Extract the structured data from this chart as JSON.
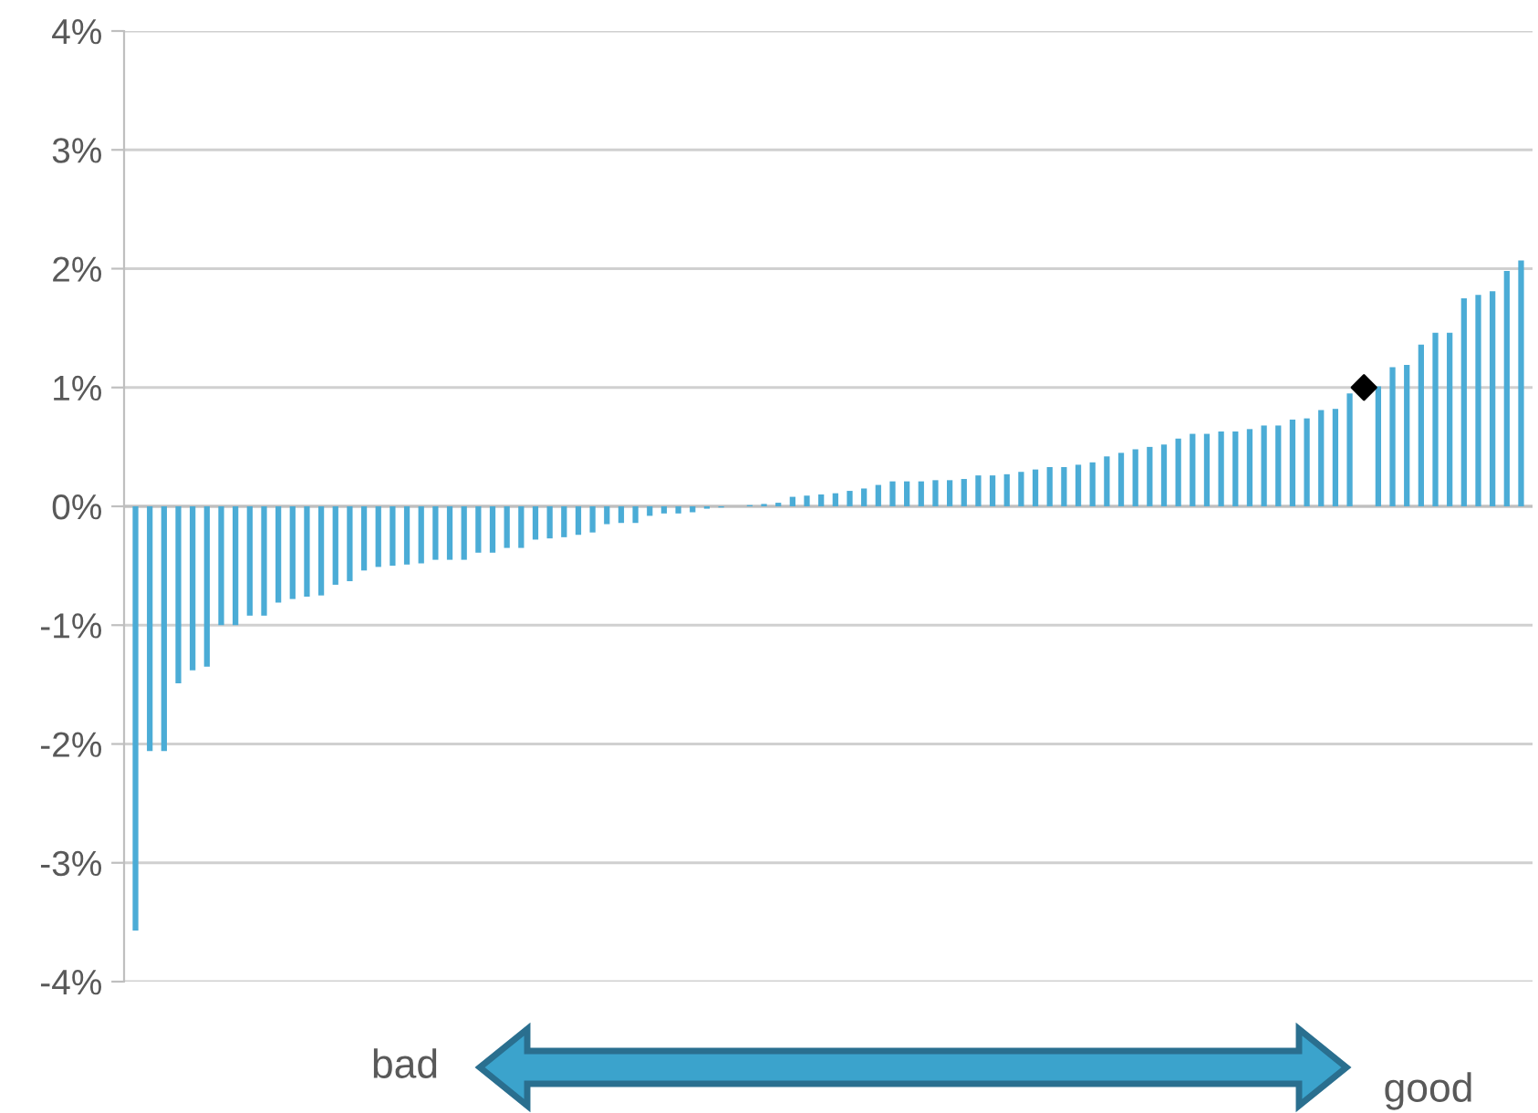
{
  "chart_data": {
    "type": "bar",
    "categories": [
      null,
      null,
      null,
      null,
      null,
      null,
      null,
      null,
      null,
      null,
      null,
      null,
      null,
      null,
      null,
      null,
      null,
      null,
      null,
      null,
      null,
      null,
      null,
      null,
      null,
      null,
      null,
      null,
      null,
      null,
      null,
      null,
      null,
      null,
      null,
      null,
      null,
      null,
      null,
      null,
      null,
      null,
      null,
      null,
      null,
      null,
      null,
      null,
      null,
      null,
      null,
      null,
      null,
      null,
      null,
      null,
      null,
      null,
      null,
      null,
      null,
      null,
      null,
      null,
      null,
      null,
      null,
      null,
      null,
      null,
      null,
      null,
      null,
      null,
      null,
      null,
      null,
      null,
      null,
      null,
      null,
      null,
      null,
      null,
      null,
      null,
      null,
      null,
      null,
      null,
      null,
      null,
      null,
      null,
      null,
      null,
      null,
      null
    ],
    "series": [
      {
        "color": "#4bacd6",
        "values": [
          -3.57,
          -2.06,
          -2.06,
          -1.49,
          -1.38,
          -1.35,
          -1.0,
          -1.0,
          -0.92,
          -0.92,
          -0.81,
          -0.78,
          -0.76,
          -0.75,
          -0.66,
          -0.63,
          -0.54,
          -0.51,
          -0.5,
          -0.49,
          -0.48,
          -0.45,
          -0.45,
          -0.45,
          -0.39,
          -0.39,
          -0.35,
          -0.35,
          -0.28,
          -0.27,
          -0.26,
          -0.24,
          -0.22,
          -0.15,
          -0.14,
          -0.14,
          -0.08,
          -0.06,
          -0.06,
          -0.05,
          -0.02,
          -0.01,
          0,
          0.01,
          0.02,
          0.03,
          0.08,
          0.09,
          0.1,
          0.11,
          0.13,
          0.15,
          0.18,
          0.21,
          0.21,
          0.21,
          0.22,
          0.22,
          0.23,
          0.26,
          0.26,
          0.27,
          0.29,
          0.31,
          0.33,
          0.33,
          0.35,
          0.37,
          0.42,
          0.45,
          0.48,
          0.5,
          0.52,
          0.57,
          0.61,
          0.61,
          0.63,
          0.63,
          0.65,
          0.68,
          0.68,
          0.73,
          0.74,
          0.81,
          0.82,
          0.95,
          null,
          1.01,
          1.17,
          1.19,
          1.36,
          1.46,
          1.46,
          1.75,
          1.78,
          1.81,
          1.98,
          2.07
        ]
      },
      {
        "type": "scatter",
        "color": "#000000",
        "marker": "diamond",
        "values": [
          null,
          null,
          null,
          null,
          null,
          null,
          null,
          null,
          null,
          null,
          null,
          null,
          null,
          null,
          null,
          null,
          null,
          null,
          null,
          null,
          null,
          null,
          null,
          null,
          null,
          null,
          null,
          null,
          null,
          null,
          null,
          null,
          null,
          null,
          null,
          null,
          null,
          null,
          null,
          null,
          null,
          null,
          null,
          null,
          null,
          null,
          null,
          null,
          null,
          null,
          null,
          null,
          null,
          null,
          null,
          null,
          null,
          null,
          null,
          null,
          null,
          null,
          null,
          null,
          null,
          null,
          null,
          null,
          null,
          null,
          null,
          null,
          null,
          null,
          null,
          null,
          null,
          null,
          null,
          null,
          null,
          null,
          null,
          null,
          null,
          null,
          1.0,
          null,
          null,
          null,
          null,
          null,
          null,
          null,
          null,
          null,
          null,
          null
        ]
      }
    ],
    "ylim": [
      -4,
      4
    ],
    "yticks": [
      {
        "value": -4,
        "label": "-4%"
      },
      {
        "value": -3,
        "label": "-3%"
      },
      {
        "value": -2,
        "label": "-2%"
      },
      {
        "value": -1,
        "label": "-1%"
      },
      {
        "value": 0,
        "label": "0%"
      },
      {
        "value": 1,
        "label": "1%"
      },
      {
        "value": 2,
        "label": "2%"
      },
      {
        "value": 3,
        "label": "3%"
      },
      {
        "value": 4,
        "label": "4%"
      }
    ],
    "grid": "y",
    "tick_labels": "y",
    "annotations": [
      "bad",
      "good"
    ]
  }
}
